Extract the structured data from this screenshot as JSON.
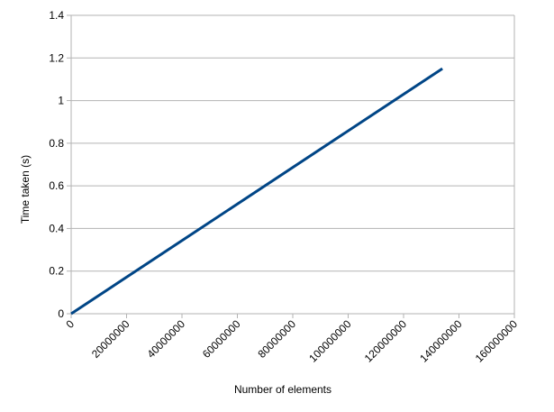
{
  "chart_data": {
    "type": "line",
    "title": "",
    "xlabel": "Number of elements",
    "ylabel": "Time taken (s)",
    "xlim": [
      0,
      160000000
    ],
    "ylim": [
      0,
      1.4
    ],
    "x_ticks": [
      0,
      20000000,
      40000000,
      60000000,
      80000000,
      100000000,
      120000000,
      140000000,
      160000000
    ],
    "y_ticks": [
      0,
      0.2,
      0.4,
      0.6,
      0.8,
      1,
      1.2,
      1.4
    ],
    "x_tick_labels": [
      "0",
      "20000000",
      "40000000",
      "60000000",
      "80000000",
      "100000000",
      "120000000",
      "140000000",
      "160000000"
    ],
    "y_tick_labels": [
      "0",
      "0.2",
      "0.4",
      "0.6",
      "0.8",
      "1",
      "1.2",
      "1.4"
    ],
    "grid": "horizontal",
    "legend": "none",
    "series": [
      {
        "color": "#004586",
        "points": [
          [
            0,
            0
          ],
          [
            134000000,
            1.15
          ]
        ]
      }
    ]
  }
}
